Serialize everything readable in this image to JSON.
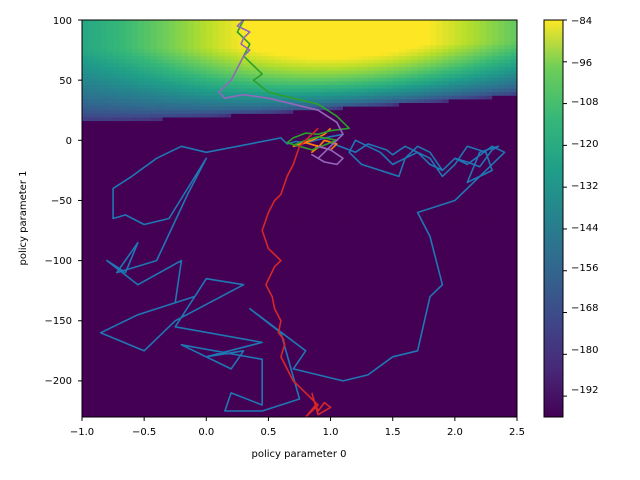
{
  "chart_data": {
    "type": "heatmap",
    "xlabel": "policy parameter 0",
    "ylabel": "policy parameter 1",
    "xlim": [
      -1.0,
      2.5
    ],
    "ylim": [
      -230,
      100
    ],
    "x_ticks": [
      "−1.0",
      "−0.5",
      "0.0",
      "0.5",
      "1.0",
      "1.5",
      "2.0",
      "2.5"
    ],
    "y_ticks": [
      "−200",
      "−150",
      "−100",
      "−50",
      "0",
      "50",
      "100"
    ],
    "colorbar": {
      "min": -198,
      "max": -84,
      "colormap": "viridis",
      "ticks": [
        "−84",
        "−96",
        "−108",
        "−120",
        "−132",
        "−144",
        "−156",
        "−168",
        "−180",
        "−192"
      ]
    },
    "series": [
      {
        "color": "#1f77b4",
        "x": [
          1.1,
          1.0,
          0.8,
          0.72,
          0.65,
          0.6,
          0.0,
          -0.2,
          -0.4,
          -0.6,
          -0.75,
          -0.75,
          -0.65,
          -0.5,
          -0.3,
          0.0,
          -0.15,
          -0.4,
          -0.72,
          -0.72,
          -0.55,
          -0.65,
          -0.8,
          -0.55,
          -0.2,
          -0.25,
          -0.1,
          -0.55,
          -0.85,
          -0.5,
          -0.25,
          0.3,
          0.0,
          -0.25,
          0.45,
          0.0,
          0.3,
          0.2,
          -0.2,
          0.45,
          0.45,
          0.2,
          0.15,
          0.45,
          0.75,
          0.6,
          0.35,
          0.8,
          0.7,
          1.1,
          1.3,
          1.5,
          1.7,
          1.8,
          1.9,
          1.8,
          1.7,
          2.0,
          2.2,
          2.3,
          2.4,
          2.3,
          2.1,
          2.0,
          1.9,
          1.8,
          1.7,
          1.6,
          1.5,
          1.4,
          1.3,
          1.2,
          1.15,
          1.25,
          1.4,
          1.55,
          1.6,
          1.7,
          1.8,
          1.9,
          2.0,
          2.1,
          2.2,
          2.3,
          2.35,
          2.2,
          2.1,
          2.3,
          2.25,
          2.1,
          2.0,
          1.9,
          1.8,
          1.7,
          1.6,
          1.5,
          1.45,
          1.3,
          1.2,
          1.1,
          1.0
        ],
        "y": [
          5,
          3,
          -2,
          -1,
          -3,
          2,
          -10,
          -5,
          -15,
          -30,
          -40,
          -65,
          -62,
          -70,
          -65,
          -15,
          -45,
          -100,
          -110,
          -110,
          -85,
          -110,
          -100,
          -120,
          -100,
          -135,
          -130,
          -145,
          -160,
          -175,
          -150,
          -120,
          -115,
          -155,
          -168,
          -180,
          -175,
          -190,
          -170,
          -182,
          -220,
          -210,
          -225,
          -225,
          -215,
          -160,
          -140,
          -175,
          -190,
          -200,
          -195,
          -180,
          -175,
          -130,
          -120,
          -80,
          -60,
          -50,
          -30,
          -20,
          -10,
          -5,
          -20,
          -15,
          -25,
          -10,
          -5,
          -15,
          -20,
          -10,
          -5,
          0,
          -10,
          -20,
          -25,
          -30,
          -15,
          -10,
          -20,
          -25,
          -15,
          -18,
          -22,
          -8,
          -5,
          -10,
          -35,
          -25,
          -10,
          -5,
          -20,
          -30,
          -15,
          -10,
          -5,
          -12,
          -8,
          -3,
          -10,
          -6,
          -2
        ]
      },
      {
        "color": "#ff7f0e",
        "x": [
          1.0,
          0.95,
          0.85,
          0.75,
          0.7,
          0.8,
          0.9,
          1.0,
          1.05,
          0.95,
          0.9,
          0.85,
          0.9
        ],
        "y": [
          10,
          5,
          0,
          -3,
          -5,
          -2,
          -5,
          -8,
          -3,
          0,
          -6,
          -10,
          -4
        ]
      },
      {
        "color": "#2ca02c",
        "x": [
          0.3,
          0.25,
          0.35,
          0.3,
          0.4,
          0.45,
          0.38,
          0.5,
          0.7,
          0.9,
          1.05,
          1.15,
          1.0,
          0.9,
          0.8,
          0.7,
          0.65,
          0.75,
          0.85,
          0.95,
          1.05,
          0.9,
          0.8,
          0.7
        ],
        "y": [
          100,
          90,
          80,
          70,
          60,
          55,
          50,
          40,
          35,
          30,
          20,
          10,
          8,
          5,
          6,
          2,
          -2,
          -5,
          -8,
          -4,
          0,
          3,
          0,
          -4
        ]
      },
      {
        "color": "#d62728",
        "x": [
          0.9,
          0.85,
          0.8,
          0.75,
          0.7,
          0.65,
          0.6,
          0.55,
          0.5,
          0.45,
          0.5,
          0.6,
          0.55,
          0.48,
          0.53,
          0.55,
          0.6,
          0.58,
          0.62,
          0.63,
          0.6,
          0.65,
          0.7,
          0.75,
          0.8,
          0.85,
          0.9,
          0.85,
          0.8,
          0.88,
          0.9,
          0.95,
          1.0,
          0.9,
          0.85
        ],
        "y": [
          10,
          5,
          0,
          -5,
          -20,
          -30,
          -45,
          -50,
          -60,
          -75,
          -90,
          -100,
          -105,
          -120,
          -130,
          -140,
          -150,
          -160,
          -165,
          -170,
          -180,
          -190,
          -200,
          -205,
          -210,
          -215,
          -220,
          -225,
          -230,
          -220,
          -225,
          -218,
          -222,
          -228,
          -210
        ]
      },
      {
        "color": "#9467bd",
        "x": [
          0.3,
          0.25,
          0.35,
          0.3,
          0.28,
          0.35,
          0.3,
          0.25,
          0.2,
          0.1,
          0.15,
          0.3,
          0.5,
          0.7,
          0.9,
          1.05,
          1.1,
          1.0,
          0.95,
          0.9,
          0.85,
          0.95,
          1.05,
          1.1,
          1.0,
          0.9
        ],
        "y": [
          100,
          95,
          90,
          85,
          80,
          75,
          70,
          60,
          50,
          40,
          35,
          38,
          35,
          30,
          25,
          15,
          5,
          -5,
          -10,
          -15,
          -12,
          -18,
          -20,
          -15,
          -8,
          -5
        ]
      }
    ]
  }
}
